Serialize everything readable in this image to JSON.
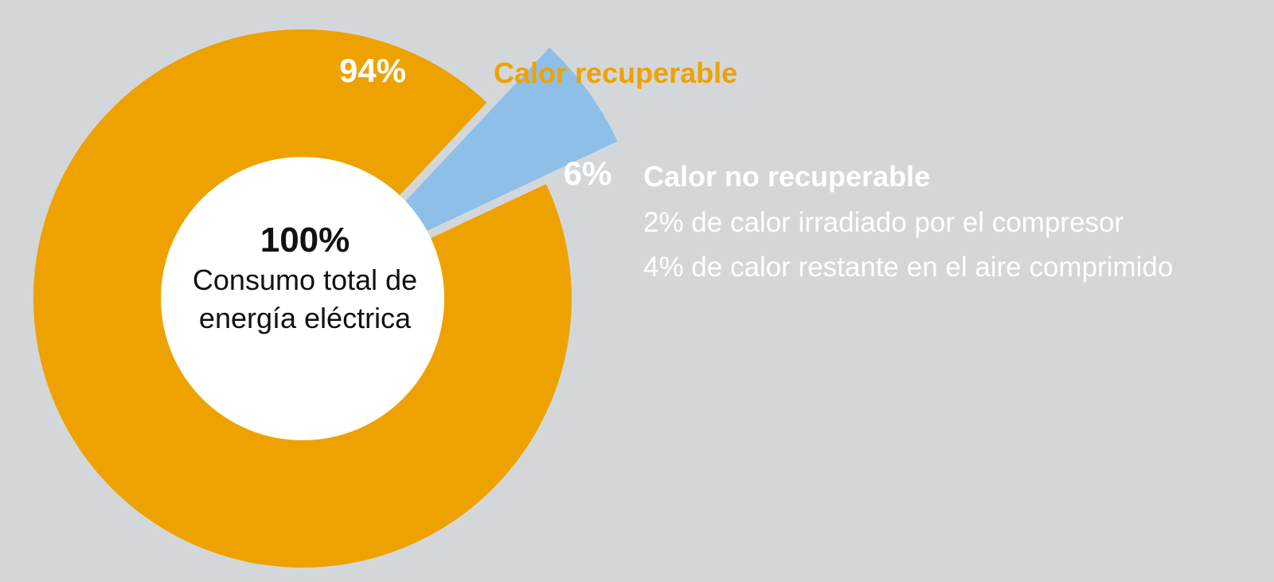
{
  "chart_data": {
    "type": "pie",
    "center": {
      "value_label": "100%",
      "line1": "Consumo total de",
      "line2": "energía eléctrica"
    },
    "series": [
      {
        "name": "Calor recuperable",
        "value": 94,
        "value_label": "94%",
        "color": "#eea200"
      },
      {
        "name": "Calor no recuperable",
        "value": 6,
        "value_label": "6%",
        "color": "#8ebfe8",
        "details": [
          "2% de calor irradiado por el compresor",
          "4% de calor restante en el aire comprimido"
        ]
      }
    ],
    "legend": "right",
    "background": "#d4d7da"
  }
}
